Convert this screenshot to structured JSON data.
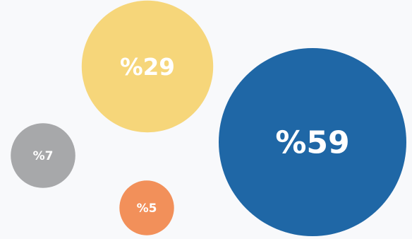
{
  "chart_data": {
    "type": "bubble",
    "title": "",
    "legend": "none",
    "grid": false,
    "series": [
      {
        "label": "%59",
        "value": 59,
        "color": "#1f67a6"
      },
      {
        "label": "%29",
        "value": 29,
        "color": "#f6d67a"
      },
      {
        "label": "%7",
        "value": 7,
        "color": "#a7a8aa"
      },
      {
        "label": "%5",
        "value": 5,
        "color": "#f2905a"
      }
    ]
  }
}
